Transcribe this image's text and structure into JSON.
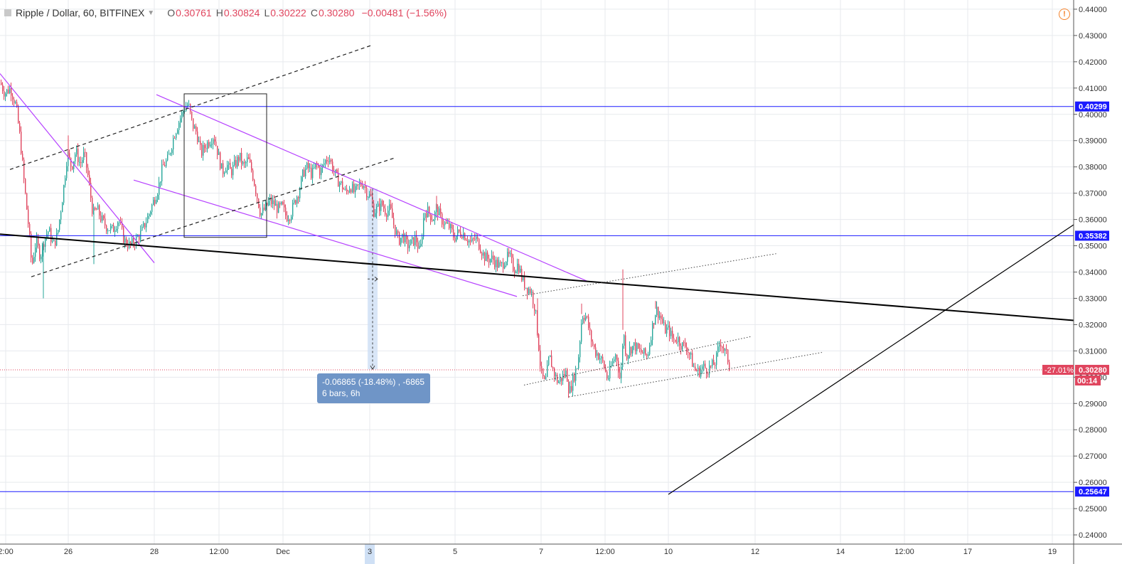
{
  "header": {
    "title": "Ripple / Dollar, 60, BITFINEX",
    "o_label": "O",
    "o_value": "0.30761",
    "h_label": "H",
    "h_value": "0.30824",
    "l_label": "L",
    "l_value": "0.30222",
    "c_label": "C",
    "c_value": "0.30280",
    "change": "−0.00481 (−1.56%)"
  },
  "measure": {
    "line1": "-0.06865 (-18.48%) , -6865",
    "line2": "6 bars, 6h"
  },
  "colors": {
    "up": "#26a69a",
    "down": "#e0455e",
    "level": "#1a1aff",
    "channel": "#b641ff",
    "trend": "#000000",
    "grid": "#e7eaee",
    "measure": "#6f95c7"
  },
  "chart_data": {
    "type": "candlestick",
    "y_axis": {
      "min": 0.2365,
      "max": 0.4435,
      "ticks": [
        "0.24000",
        "0.25000",
        "0.26000",
        "0.27000",
        "0.28000",
        "0.29000",
        "0.30000",
        "0.31000",
        "0.32000",
        "0.33000",
        "0.34000",
        "0.35000",
        "0.36000",
        "0.37000",
        "0.38000",
        "0.39000",
        "0.40000",
        "0.41000",
        "0.42000",
        "0.43000",
        "0.44000"
      ]
    },
    "x_axis": {
      "labels": [
        "2:00",
        "26",
        "28",
        "12:00",
        "Dec",
        "3",
        "5",
        "7",
        "12:00",
        "10",
        "12",
        "14",
        "12:00",
        "17",
        "19"
      ],
      "highlighted": "3"
    },
    "grid": true,
    "price_levels": [
      {
        "value": 0.40299,
        "label": "0.40299"
      },
      {
        "value": 0.35382,
        "label": "0.35382"
      },
      {
        "value": 0.25647,
        "label": "0.25647"
      }
    ],
    "current": {
      "price": 0.3028,
      "label": "0.30280",
      "pct": "-27.01%",
      "countdown": "00:14"
    },
    "candle_path": [
      [
        0,
        0.412
      ],
      [
        6,
        0.408
      ],
      [
        14,
        0.41
      ],
      [
        22,
        0.403
      ],
      [
        28,
        0.39
      ],
      [
        34,
        0.372
      ],
      [
        40,
        0.356
      ],
      [
        44,
        0.342
      ],
      [
        50,
        0.352
      ],
      [
        56,
        0.346
      ],
      [
        62,
        0.353
      ],
      [
        68,
        0.356
      ],
      [
        74,
        0.35
      ],
      [
        80,
        0.354
      ],
      [
        88,
        0.37
      ],
      [
        94,
        0.385
      ],
      [
        100,
        0.38
      ],
      [
        106,
        0.386
      ],
      [
        112,
        0.381
      ],
      [
        118,
        0.385
      ],
      [
        124,
        0.375
      ],
      [
        130,
        0.362
      ],
      [
        136,
        0.364
      ],
      [
        142,
        0.36
      ],
      [
        150,
        0.357
      ],
      [
        158,
        0.356
      ],
      [
        166,
        0.36
      ],
      [
        174,
        0.352
      ],
      [
        182,
        0.35
      ],
      [
        190,
        0.352
      ],
      [
        198,
        0.355
      ],
      [
        206,
        0.36
      ],
      [
        214,
        0.366
      ],
      [
        222,
        0.372
      ],
      [
        228,
        0.38
      ],
      [
        236,
        0.383
      ],
      [
        244,
        0.392
      ],
      [
        252,
        0.398
      ],
      [
        258,
        0.402
      ],
      [
        264,
        0.404
      ],
      [
        270,
        0.396
      ],
      [
        276,
        0.393
      ],
      [
        282,
        0.385
      ],
      [
        288,
        0.388
      ],
      [
        294,
        0.39
      ],
      [
        300,
        0.392
      ],
      [
        306,
        0.385
      ],
      [
        312,
        0.378
      ],
      [
        318,
        0.381
      ],
      [
        324,
        0.378
      ],
      [
        330,
        0.381
      ],
      [
        336,
        0.384
      ],
      [
        342,
        0.38
      ],
      [
        348,
        0.383
      ],
      [
        354,
        0.378
      ],
      [
        360,
        0.37
      ],
      [
        366,
        0.362
      ],
      [
        372,
        0.364
      ],
      [
        378,
        0.367
      ],
      [
        384,
        0.366
      ],
      [
        390,
        0.364
      ],
      [
        396,
        0.365
      ],
      [
        402,
        0.361
      ],
      [
        408,
        0.362
      ],
      [
        414,
        0.367
      ],
      [
        420,
        0.371
      ],
      [
        426,
        0.378
      ],
      [
        432,
        0.38
      ],
      [
        438,
        0.377
      ],
      [
        444,
        0.381
      ],
      [
        450,
        0.378
      ],
      [
        456,
        0.382
      ],
      [
        462,
        0.384
      ],
      [
        468,
        0.379
      ],
      [
        474,
        0.375
      ],
      [
        480,
        0.373
      ],
      [
        486,
        0.37
      ],
      [
        492,
        0.373
      ],
      [
        498,
        0.37
      ],
      [
        504,
        0.373
      ],
      [
        510,
        0.374
      ],
      [
        516,
        0.37
      ],
      [
        522,
        0.368
      ],
      [
        524,
        0.363
      ],
      [
        530,
        0.364
      ],
      [
        536,
        0.366
      ],
      [
        542,
        0.363
      ],
      [
        548,
        0.364
      ],
      [
        554,
        0.357
      ],
      [
        560,
        0.352
      ],
      [
        566,
        0.354
      ],
      [
        572,
        0.35
      ],
      [
        578,
        0.351
      ],
      [
        584,
        0.353
      ],
      [
        590,
        0.347
      ],
      [
        596,
        0.363
      ],
      [
        602,
        0.363
      ],
      [
        608,
        0.36
      ],
      [
        614,
        0.364
      ],
      [
        620,
        0.36
      ],
      [
        626,
        0.358
      ],
      [
        632,
        0.357
      ],
      [
        638,
        0.353
      ],
      [
        644,
        0.355
      ],
      [
        650,
        0.355
      ],
      [
        656,
        0.353
      ],
      [
        662,
        0.351
      ],
      [
        668,
        0.353
      ],
      [
        674,
        0.35
      ],
      [
        680,
        0.346
      ],
      [
        686,
        0.345
      ],
      [
        692,
        0.345
      ],
      [
        698,
        0.343
      ],
      [
        704,
        0.342
      ],
      [
        710,
        0.345
      ],
      [
        716,
        0.346
      ],
      [
        722,
        0.341
      ],
      [
        728,
        0.343
      ],
      [
        734,
        0.337
      ],
      [
        740,
        0.334
      ],
      [
        746,
        0.333
      ],
      [
        752,
        0.326
      ],
      [
        756,
        0.315
      ],
      [
        760,
        0.302
      ],
      [
        766,
        0.297
      ],
      [
        772,
        0.308
      ],
      [
        778,
        0.302
      ],
      [
        784,
        0.298
      ],
      [
        790,
        0.3
      ],
      [
        796,
        0.302
      ],
      [
        800,
        0.294
      ],
      [
        806,
        0.3
      ],
      [
        812,
        0.305
      ],
      [
        818,
        0.324
      ],
      [
        824,
        0.323
      ],
      [
        830,
        0.315
      ],
      [
        836,
        0.31
      ],
      [
        842,
        0.308
      ],
      [
        848,
        0.305
      ],
      [
        854,
        0.299
      ],
      [
        860,
        0.305
      ],
      [
        866,
        0.309
      ],
      [
        872,
        0.298
      ],
      [
        876,
        0.318
      ],
      [
        880,
        0.308
      ],
      [
        886,
        0.311
      ],
      [
        892,
        0.312
      ],
      [
        898,
        0.31
      ],
      [
        904,
        0.309
      ],
      [
        910,
        0.308
      ],
      [
        916,
        0.318
      ],
      [
        922,
        0.326
      ],
      [
        928,
        0.323
      ],
      [
        934,
        0.318
      ],
      [
        940,
        0.318
      ],
      [
        946,
        0.314
      ],
      [
        952,
        0.315
      ],
      [
        958,
        0.312
      ],
      [
        964,
        0.312
      ],
      [
        970,
        0.308
      ],
      [
        976,
        0.303
      ],
      [
        982,
        0.302
      ],
      [
        988,
        0.304
      ],
      [
        994,
        0.303
      ],
      [
        1000,
        0.304
      ],
      [
        1006,
        0.306
      ],
      [
        1012,
        0.314
      ],
      [
        1018,
        0.31
      ],
      [
        1022,
        0.308
      ],
      [
        1026,
        0.303
      ]
    ],
    "spikes": [
      [
        61,
        0.33
      ],
      [
        96,
        0.392
      ],
      [
        132,
        0.343
      ],
      [
        614,
        0.369
      ],
      [
        756,
        0.33
      ],
      [
        818,
        0.328
      ],
      [
        876,
        0.341
      ],
      [
        922,
        0.329
      ]
    ],
    "drawings": {
      "horizontal": [
        0.40299,
        0.35382,
        0.25647
      ],
      "purple_lines": [
        [
          [
            220,
            0.4075
          ],
          [
            826,
            0.3365
          ]
        ],
        [
          [
            188,
            0.375
          ],
          [
            727,
            0.3307
          ]
        ],
        [
          [
            0,
            0.4155
          ],
          [
            217,
            0.3435
          ]
        ]
      ],
      "trend_lines": [
        [
          [
            0,
            0.3544
          ],
          [
            1510,
            0.3216
          ]
        ],
        [
          [
            940,
            0.2554
          ],
          [
            1510,
            0.358
          ]
        ]
      ],
      "dashed_channel": [
        [
          [
            14,
            0.379
          ],
          [
            524,
            0.4264
          ]
        ],
        [
          [
            44,
            0.3382
          ],
          [
            556,
            0.3835
          ]
        ]
      ],
      "dotted_channel": [
        [
          [
            735,
            0.331
          ],
          [
            1092,
            0.347
          ]
        ],
        [
          [
            737,
            0.297
          ],
          [
            1057,
            0.3155
          ]
        ],
        [
          [
            800,
            0.2925
          ],
          [
            1158,
            0.3095
          ]
        ]
      ],
      "box": {
        "x1": 259,
        "x2": 375,
        "y1": 0.4078,
        "y2": 0.3532
      },
      "measure": {
        "x": 524,
        "from": 0.3717,
        "to": 0.303
      }
    }
  }
}
